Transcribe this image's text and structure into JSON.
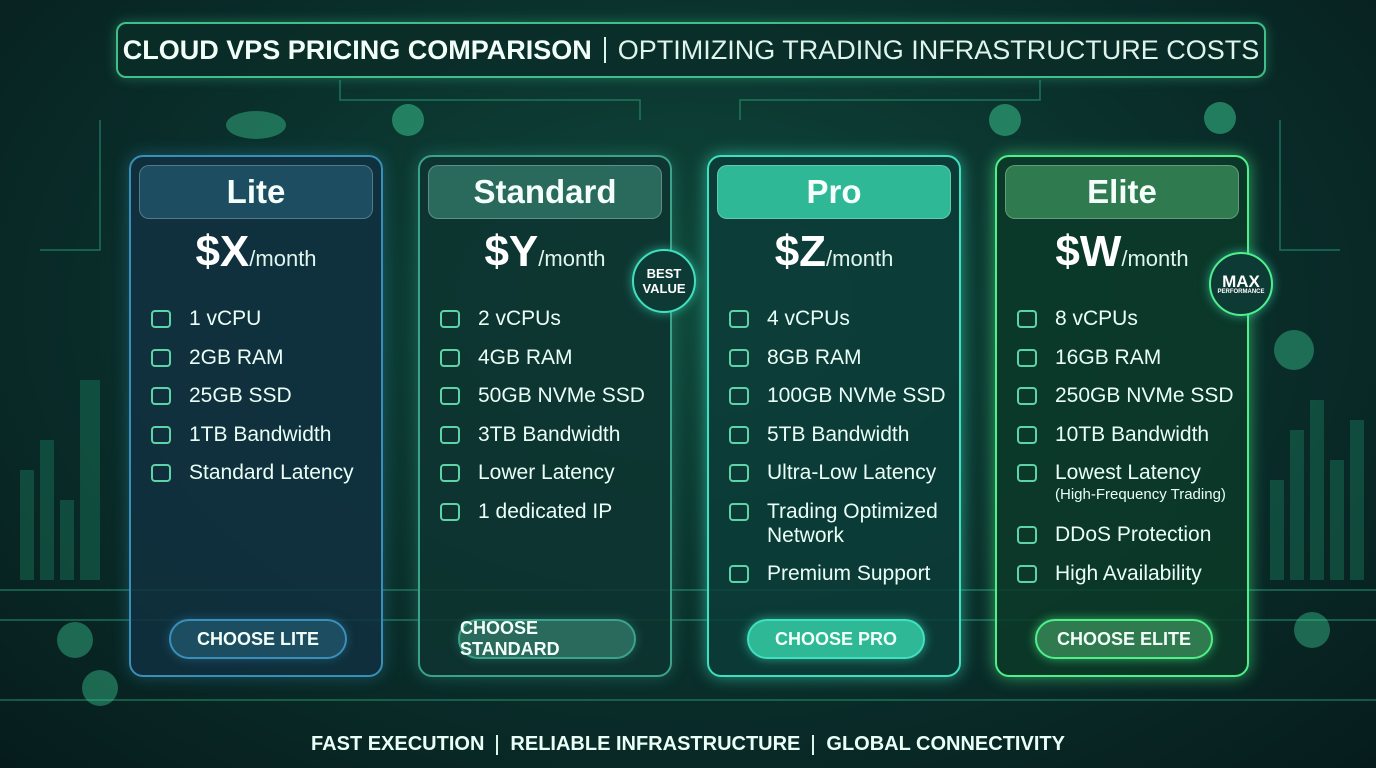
{
  "header": {
    "title_bold": "CLOUD VPS PRICING COMPARISON",
    "title_light": "OPTIMIZING TRADING INFRASTRUCTURE COSTS"
  },
  "plans": [
    {
      "name": "Lite",
      "price": "$X",
      "period": "/month",
      "features": [
        {
          "text": "1 vCPU"
        },
        {
          "text": "2GB RAM"
        },
        {
          "text": "25GB SSD"
        },
        {
          "text": "1TB Bandwidth"
        },
        {
          "text": "Standard Latency"
        }
      ],
      "button": "CHOOSE LITE"
    },
    {
      "name": "Standard",
      "price": "$Y",
      "period": "/month",
      "badge": {
        "main": "BEST VALUE"
      },
      "features": [
        {
          "text": "2 vCPUs"
        },
        {
          "text": "4GB RAM"
        },
        {
          "text": "50GB NVMe SSD"
        },
        {
          "text": "3TB Bandwidth"
        },
        {
          "text": "Lower Latency"
        },
        {
          "text": "1 dedicated IP"
        }
      ],
      "button": "CHOOSE STANDARD"
    },
    {
      "name": "Pro",
      "price": "$Z",
      "period": "/month",
      "features": [
        {
          "text": "4 vCPUs"
        },
        {
          "text": "8GB RAM"
        },
        {
          "text": "100GB NVMe SSD"
        },
        {
          "text": "5TB Bandwidth"
        },
        {
          "text": "Ultra-Low Latency"
        },
        {
          "text": "Trading Optimized Network"
        },
        {
          "text": "Premium Support"
        }
      ],
      "button": "CHOOSE PRO"
    },
    {
      "name": "Elite",
      "price": "$W",
      "period": "/month",
      "badge": {
        "main": "MAX",
        "sub": "PERFORMANCE"
      },
      "features": [
        {
          "text": "8 vCPUs"
        },
        {
          "text": "16GB RAM"
        },
        {
          "text": "250GB NVMe SSD"
        },
        {
          "text": "10TB Bandwidth"
        },
        {
          "text": "Lowest Latency",
          "sub": "(High-Frequency Trading)"
        },
        {
          "text": "DDoS Protection"
        },
        {
          "text": "High Availability"
        }
      ],
      "button": "CHOOSE ELITE"
    }
  ],
  "footer": [
    "FAST EXECUTION",
    "RELIABLE INFRASTRUCTURE",
    "GLOBAL CONNECTIVITY"
  ]
}
